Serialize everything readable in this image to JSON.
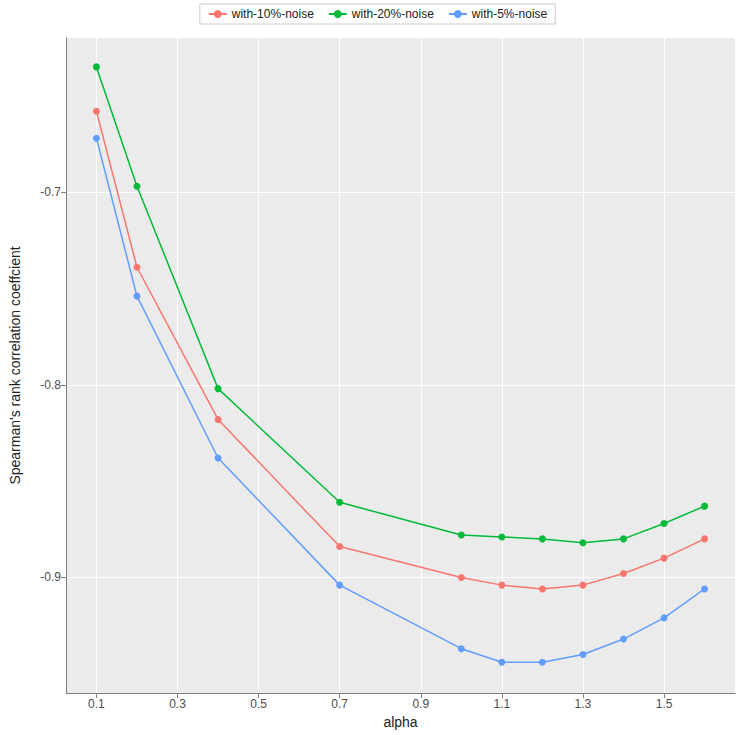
{
  "chart_data": {
    "type": "line",
    "x_label": "alpha",
    "y_label": "Spearman's rank correlation coeffcient",
    "x": [
      0.1,
      0.2,
      0.4,
      0.7,
      1.0,
      1.1,
      1.2,
      1.3,
      1.4,
      1.5,
      1.6
    ],
    "series": [
      {
        "name": "with-10%-noise",
        "color": "#F8766D",
        "values": [
          -0.658,
          -0.739,
          -0.818,
          -0.884,
          -0.9,
          -0.904,
          -0.906,
          -0.904,
          -0.898,
          -0.89,
          -0.88
        ]
      },
      {
        "name": "with-20%-noise",
        "color": "#00BA38",
        "values": [
          -0.635,
          -0.697,
          -0.802,
          -0.861,
          -0.878,
          -0.879,
          -0.88,
          -0.882,
          -0.88,
          -0.872,
          -0.863
        ]
      },
      {
        "name": "with-5%-noise",
        "color": "#619CFF",
        "values": [
          -0.672,
          -0.754,
          -0.838,
          -0.904,
          -0.937,
          -0.944,
          -0.944,
          -0.94,
          -0.932,
          -0.921,
          -0.906
        ]
      }
    ],
    "xlim": [
      0.025,
      1.675
    ],
    "ylim": [
      -0.96,
      -0.62
    ],
    "xticks": [
      0.1,
      0.3,
      0.5,
      0.7,
      0.9,
      1.1,
      1.3,
      1.5
    ],
    "yticks": [
      -0.9,
      -0.8,
      -0.7
    ],
    "grid": true,
    "legend": "top",
    "marker": "circle"
  }
}
